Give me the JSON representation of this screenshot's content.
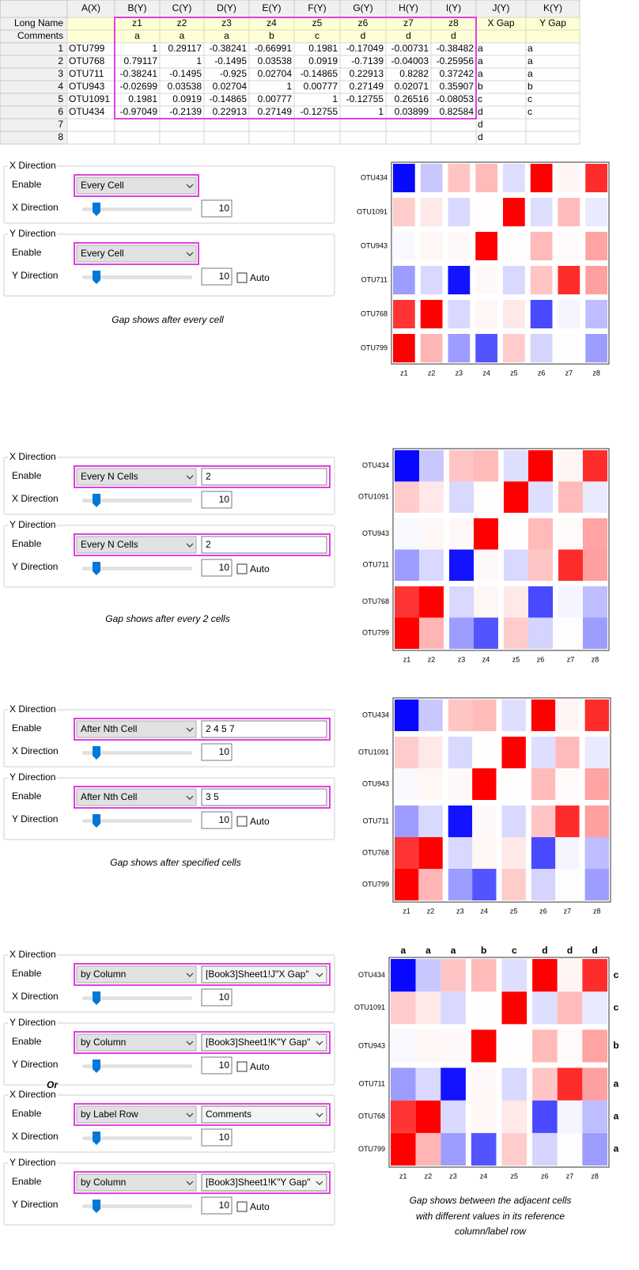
{
  "spreadsheet": {
    "header": [
      "A(X)",
      "B(Y)",
      "C(Y)",
      "D(Y)",
      "E(Y)",
      "F(Y)",
      "G(Y)",
      "H(Y)",
      "I(Y)",
      "J(Y)",
      "K(Y)"
    ],
    "label_rows": [
      {
        "label": "Long Name",
        "cells": [
          null,
          "z1",
          "z2",
          "z3",
          "z4",
          "z5",
          "z6",
          "z7",
          "z8",
          "X Gap",
          "Y Gap"
        ]
      },
      {
        "label": "Comments",
        "cells": [
          null,
          "a",
          "a",
          "a",
          "b",
          "c",
          "d",
          "d",
          "d",
          null,
          null
        ]
      }
    ],
    "rows": [
      {
        "index": 1,
        "cells": [
          "OTU799",
          1,
          0.29117,
          -0.38241,
          -0.66991,
          0.1981,
          -0.17049,
          -0.00731,
          -0.38482,
          "a",
          "a"
        ]
      },
      {
        "index": 2,
        "cells": [
          "OTU768",
          0.79117,
          1,
          -0.1495,
          0.03538,
          0.0919,
          -0.7139,
          -0.04003,
          -0.25956,
          "a",
          "a"
        ]
      },
      {
        "index": 3,
        "cells": [
          "OTU711",
          -0.38241,
          -0.1495,
          -0.925,
          0.02704,
          -0.14865,
          0.22913,
          0.8282,
          0.37242,
          "a",
          "a"
        ]
      },
      {
        "index": 4,
        "cells": [
          "OTU943",
          -0.02699,
          0.03538,
          0.02704,
          1,
          0.00777,
          0.27149,
          0.02071,
          0.35907,
          "b",
          "b"
        ]
      },
      {
        "index": 5,
        "cells": [
          "OTU1091",
          0.1981,
          0.0919,
          -0.14865,
          0.00777,
          1,
          -0.12755,
          0.26516,
          -0.08053,
          "c",
          "c"
        ]
      },
      {
        "index": 6,
        "cells": [
          "OTU434",
          -0.97049,
          -0.2139,
          0.22913,
          0.27149,
          -0.12755,
          1,
          0.03899,
          0.82584,
          "d",
          "c"
        ]
      },
      {
        "index": 7,
        "cells": [
          null,
          null,
          null,
          null,
          null,
          null,
          null,
          null,
          null,
          "d",
          null
        ]
      },
      {
        "index": 8,
        "cells": [
          null,
          null,
          null,
          null,
          null,
          null,
          null,
          null,
          null,
          "d",
          null
        ]
      }
    ]
  },
  "panels": [
    {
      "groups": [
        {
          "title": "X Direction",
          "enable_label": "Enable",
          "mode": "Every Cell",
          "slider_label": "X Direction",
          "slider_value": 10
        },
        {
          "title": "Y Direction",
          "enable_label": "Enable",
          "mode": "Every Cell",
          "slider_label": "Y Direction",
          "slider_value": 10,
          "auto_label": "Auto"
        }
      ],
      "caption": [
        "Gap shows after every cell"
      ],
      "heatmap": {
        "x_gaps_after": [
          1,
          2,
          3,
          4,
          5,
          6,
          7
        ],
        "y_gaps_after": [
          1,
          2,
          3,
          4,
          5
        ]
      }
    },
    {
      "groups": [
        {
          "title": "X Direction",
          "enable_label": "Enable",
          "mode": "Every N Cells",
          "param": "2",
          "param_dropdown": false,
          "slider_label": "X Direction",
          "slider_value": 10
        },
        {
          "title": "Y Direction",
          "enable_label": "Enable",
          "mode": "Every N Cells",
          "param": "2",
          "param_dropdown": false,
          "slider_label": "Y Direction",
          "slider_value": 10,
          "auto_label": "Auto"
        }
      ],
      "caption": [
        "Gap shows after every 2 cells"
      ],
      "heatmap": {
        "x_gaps_after": [
          2,
          4,
          6
        ],
        "y_gaps_after": [
          2,
          4
        ]
      }
    },
    {
      "groups": [
        {
          "title": "X Direction",
          "enable_label": "Enable",
          "mode": "After Nth Cell",
          "param": "2 4 5 7",
          "param_dropdown": false,
          "slider_label": "X Direction",
          "slider_value": 10
        },
        {
          "title": "Y Direction",
          "enable_label": "Enable",
          "mode": "After Nth Cell",
          "param": "3 5",
          "param_dropdown": false,
          "slider_label": "Y Direction",
          "slider_value": 10,
          "auto_label": "Auto"
        }
      ],
      "caption": [
        "Gap shows after specified cells"
      ],
      "heatmap": {
        "x_gaps_after": [
          2,
          4,
          5,
          7
        ],
        "y_gaps_after": [
          3,
          5
        ]
      }
    },
    {
      "groups": [
        {
          "title": "X Direction",
          "enable_label": "Enable",
          "mode": "by Column",
          "param": "[Book3]Sheet1!J\"X Gap\"",
          "param_dropdown": true,
          "slider_label": "X Direction",
          "slider_value": 10
        },
        {
          "title": "Y Direction",
          "enable_label": "Enable",
          "mode": "by Column",
          "param": "[Book3]Sheet1!K\"Y Gap\"",
          "param_dropdown": true,
          "slider_label": "Y Direction",
          "slider_value": 10,
          "auto_label": "Auto"
        },
        {
          "title": "X Direction",
          "enable_label": "Enable",
          "mode": "by Label Row",
          "param": "Comments",
          "param_dropdown": true,
          "slider_label": "X Direction",
          "slider_value": 10
        },
        {
          "title": "Y Direction",
          "enable_label": "Enable",
          "mode": "by Column",
          "param": "[Book3]Sheet1!K\"Y Gap\"",
          "param_dropdown": true,
          "slider_label": "Y Direction",
          "slider_value": 10,
          "auto_label": "Auto"
        }
      ],
      "separator": "Or",
      "caption": [
        "Gap shows between the adjacent cells",
        "with different values in its reference",
        "column/label row"
      ],
      "heatmap": {
        "x_gaps_after": [
          3,
          4,
          5
        ],
        "y_gaps_after": [
          3,
          4
        ],
        "top_labels": true,
        "right_labels": true
      }
    }
  ]
}
